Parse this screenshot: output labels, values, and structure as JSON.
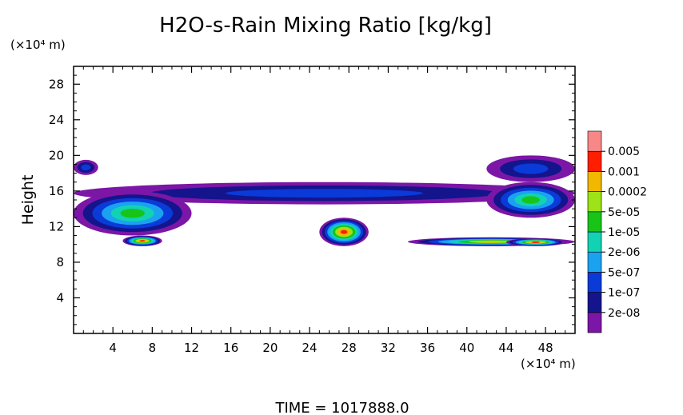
{
  "chart_data": {
    "type": "heatmap",
    "title": "H2O-s-Rain Mixing Ratio [kg/kg]",
    "ylabel": "Height",
    "x_unit": "(×10⁴ m)",
    "y_unit": "(×10⁴ m)",
    "footer": "TIME  =  1017888.0",
    "xlim": [
      0,
      51
    ],
    "ylim": [
      0,
      30
    ],
    "x_ticks": [
      4,
      8,
      12,
      16,
      20,
      24,
      28,
      32,
      36,
      40,
      44,
      48
    ],
    "y_ticks": [
      4,
      8,
      12,
      16,
      20,
      24,
      28
    ],
    "colorbar": {
      "levels": [
        "2e-08",
        "1e-07",
        "5e-07",
        "2e-06",
        "1e-05",
        "5e-05",
        "0.0002",
        "0.001",
        "0.005"
      ],
      "colors": [
        "#7b16a6",
        "#14148c",
        "#0a3ad8",
        "#1aa2f0",
        "#12d2b4",
        "#18c418",
        "#9ee218",
        "#f2b800",
        "#ff1e00",
        "#f88888"
      ]
    },
    "features": [
      {
        "x": [
          0,
          51
        ],
        "y": [
          14.5,
          17
        ],
        "level": 2
      },
      {
        "x": [
          0,
          12
        ],
        "y": [
          11,
          16
        ],
        "level": 5
      },
      {
        "x": [
          5,
          9
        ],
        "y": [
          9.8,
          11
        ],
        "level": 8
      },
      {
        "x": [
          25,
          30
        ],
        "y": [
          9.8,
          13
        ],
        "level": 8
      },
      {
        "x": [
          34,
          51
        ],
        "y": [
          9.8,
          10.8
        ],
        "level": 7
      },
      {
        "x": [
          44,
          50
        ],
        "y": [
          9.8,
          10.7
        ],
        "level": 8
      },
      {
        "x": [
          42,
          51
        ],
        "y": [
          13,
          17
        ],
        "level": 5
      },
      {
        "x": [
          42,
          51
        ],
        "y": [
          17,
          20
        ],
        "level": 2
      },
      {
        "x": [
          0,
          2.5
        ],
        "y": [
          17.8,
          19.5
        ],
        "level": 2
      }
    ]
  }
}
